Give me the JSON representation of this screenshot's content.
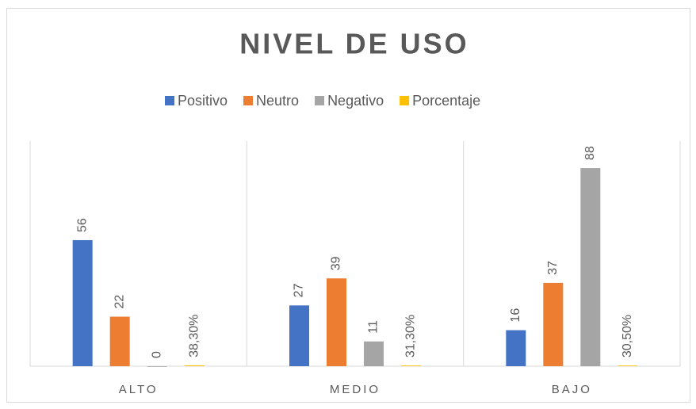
{
  "chart_data": {
    "type": "bar",
    "title": "NIVEL DE USO",
    "categories": [
      "ALTO",
      "MEDIO",
      "BAJO"
    ],
    "series": [
      {
        "name": "Positivo",
        "color": "#4472c4",
        "values": [
          56,
          27,
          16
        ]
      },
      {
        "name": "Neutro",
        "color": "#ed7d31",
        "values": [
          22,
          39,
          37
        ]
      },
      {
        "name": "Negativo",
        "color": "#a5a5a5",
        "values": [
          0,
          11,
          88
        ]
      },
      {
        "name": "Porcentaje",
        "color": "#ffc000",
        "values": [
          0.383,
          0.313,
          0.305
        ],
        "value_labels": [
          "38,30%",
          "31,30%",
          "30,50%"
        ]
      }
    ],
    "ylim": [
      0,
      100
    ],
    "legend": "top"
  }
}
